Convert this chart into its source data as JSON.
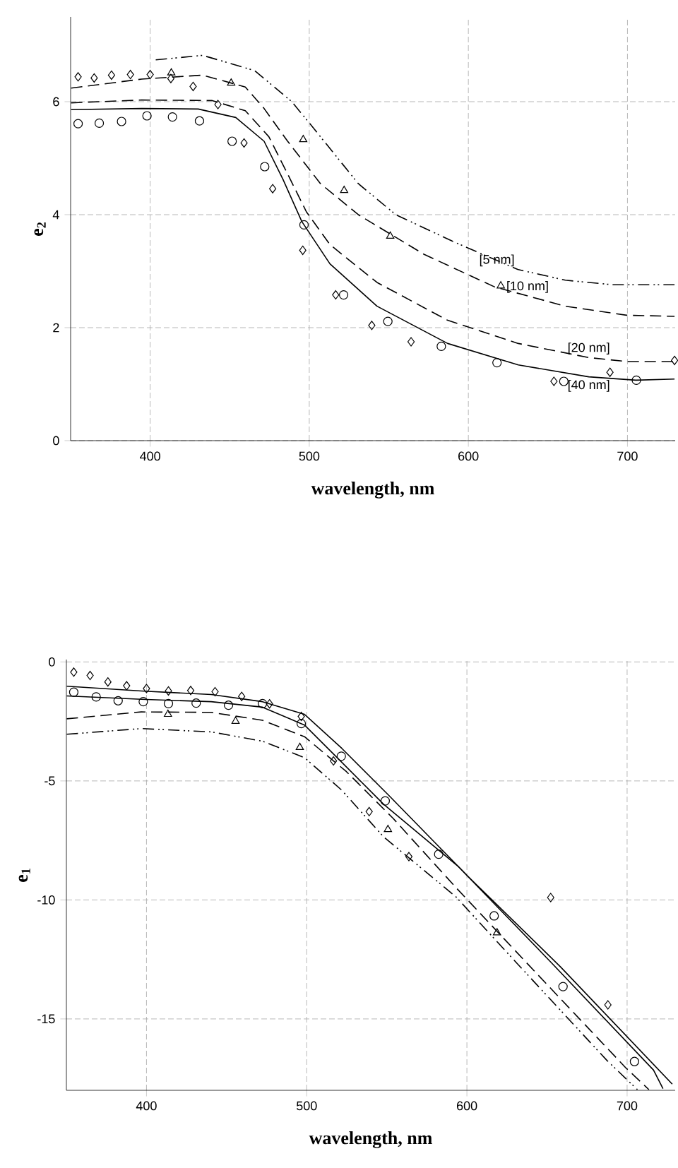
{
  "chart_data": [
    {
      "type": "line",
      "xlabel": "wavelength, nm",
      "ylabel": "e$_{2}$",
      "xlim": [
        350,
        730
      ],
      "ylim": [
        0,
        7.5
      ],
      "xticks": [
        400,
        500,
        600,
        700
      ],
      "yticks": [
        0,
        2,
        4,
        6
      ],
      "grid": true,
      "series": [
        {
          "name": "[5 nm]",
          "line_style": "dashdotdot",
          "color": "#000000",
          "x": [
            403.5,
            433,
            465.7,
            489,
            501,
            530.8,
            554.4,
            590,
            631,
            661,
            690.5,
            729.6
          ],
          "values": [
            6.74,
            6.82,
            6.55,
            6.0,
            5.59,
            4.55,
            4.0,
            3.53,
            3.03,
            2.84,
            2.76,
            2.76
          ]
        },
        {
          "name": "[10 nm]",
          "line_style": "dashed",
          "color": "#000000",
          "x": [
            350.3,
            394.7,
            433,
            459.8,
            471.6,
            486.4,
            507,
            530.8,
            572,
            616.6,
            661,
            699.4,
            729.6
          ],
          "values": [
            6.24,
            6.4,
            6.47,
            6.26,
            5.88,
            5.3,
            4.55,
            4.0,
            3.3,
            2.72,
            2.38,
            2.22,
            2.2
          ]
        },
        {
          "name": "[20 nm]",
          "line_style": "dashed",
          "color": "#000000",
          "x": [
            350.3,
            394.7,
            439,
            459.8,
            474.6,
            486.4,
            498.2,
            513,
            542.6,
            587,
            631.4,
            675.7,
            699.4,
            729.6
          ],
          "values": [
            5.98,
            6.03,
            6.02,
            5.84,
            5.38,
            4.72,
            4.05,
            3.47,
            2.8,
            2.13,
            1.72,
            1.47,
            1.4,
            1.4
          ]
        },
        {
          "name": "[40 nm]",
          "line_style": "solid",
          "color": "#000000",
          "x": [
            350.3,
            394.7,
            430.2,
            453.8,
            471.6,
            483.4,
            495.3,
            513,
            542.6,
            587,
            631.4,
            675.7,
            705.3,
            729.6
          ],
          "values": [
            5.86,
            5.88,
            5.87,
            5.72,
            5.3,
            4.63,
            3.88,
            3.13,
            2.38,
            1.72,
            1.34,
            1.13,
            1.07,
            1.09
          ]
        },
        {
          "type": "scatter",
          "marker": "circle",
          "color": "#000000",
          "x": [
            354.7,
            368,
            382,
            398,
            414,
            431,
            451.5,
            472,
            496.7,
            521.6,
            549.4,
            583,
            618,
            660,
            705.6
          ],
          "values": [
            5.61,
            5.62,
            5.65,
            5.75,
            5.73,
            5.66,
            5.3,
            4.85,
            3.82,
            2.58,
            2.11,
            1.67,
            1.38,
            1.05,
            1.07
          ]
        },
        {
          "type": "scatter",
          "marker": "diamond",
          "color": "#000000",
          "x": [
            354.7,
            364.8,
            375.7,
            387.6,
            400,
            413,
            427,
            442.6,
            459,
            477,
            495.9,
            516.6,
            539.3,
            564,
            653.8,
            689,
            729.6
          ],
          "values": [
            6.44,
            6.42,
            6.47,
            6.48,
            6.48,
            6.41,
            6.27,
            5.95,
            5.27,
            4.46,
            3.37,
            2.58,
            2.04,
            1.75,
            1.05,
            1.21,
            1.42
          ]
        },
        {
          "type": "scatter",
          "marker": "triangle",
          "color": "#000000",
          "x": [
            413.3,
            450.9,
            496.2,
            521.9,
            550.9,
            620.4
          ],
          "values": [
            6.51,
            6.33,
            5.33,
            4.43,
            3.62,
            2.74
          ]
        }
      ]
    },
    {
      "type": "line",
      "xlabel": "wavelength, nm",
      "ylabel": "e$_{1}$",
      "xlim": [
        350,
        730
      ],
      "ylim": [
        -18,
        0.1
      ],
      "xticks": [
        400,
        500,
        600,
        700
      ],
      "yticks": [
        -15,
        -10,
        -5,
        0
      ],
      "grid": true,
      "series": [
        {
          "line_style": "dashdotdot",
          "color": "#000000",
          "x": [
            350.2,
            396.8,
            440.4,
            472.4,
            498.6,
            521.9,
            548,
            593,
            629.3,
            687.5,
            706.4
          ],
          "values": [
            -3.04,
            -2.8,
            -2.94,
            -3.33,
            -4.02,
            -5.39,
            -7.35,
            -9.86,
            -12.52,
            -16.75,
            -17.97
          ]
        },
        {
          "line_style": "dashed",
          "color": "#000000",
          "x": [
            350.2,
            396.8,
            440.4,
            472.4,
            498.6,
            524.8,
            553.9,
            594.4,
            643.8,
            699.1,
            713.6
          ],
          "values": [
            -2.39,
            -2.1,
            -2.12,
            -2.45,
            -3.14,
            -4.61,
            -6.57,
            -9.57,
            -13.11,
            -17.05,
            -17.97
          ]
        },
        {
          "line_style": "solid",
          "color": "#000000",
          "x": [
            350.2,
            396.8,
            440.4,
            472.4,
            498.6,
            519,
            548,
            594.4,
            652.5,
            716.5,
            722.4
          ],
          "values": [
            -1.43,
            -1.57,
            -1.67,
            -1.9,
            -2.65,
            -4.02,
            -5.98,
            -8.58,
            -12.62,
            -17.15,
            -17.93
          ]
        },
        {
          "line_style": "solid",
          "color": "#000000",
          "x": [
            350.2,
            396.8,
            440.4,
            472.4,
            498.6,
            521.9,
            551,
            600.2,
            658.4,
            728.2
          ],
          "values": [
            -1.02,
            -1.22,
            -1.37,
            -1.67,
            -2.2,
            -3.63,
            -5.59,
            -8.98,
            -12.81,
            -17.74
          ]
        },
        {
          "type": "scatter",
          "marker": "circle",
          "color": "#000000",
          "x": [
            354.6,
            368.6,
            382.3,
            398,
            413.7,
            431,
            451.2,
            472.4,
            496.6,
            521.6,
            549,
            582.4,
            617,
            660,
            704.6
          ],
          "values": [
            -1.27,
            -1.47,
            -1.63,
            -1.67,
            -1.75,
            -1.73,
            -1.82,
            -1.75,
            -2.59,
            -3.96,
            -5.84,
            -8.08,
            -10.67,
            -13.64,
            -16.79
          ]
        },
        {
          "type": "scatter",
          "marker": "diamond",
          "color": "#000000",
          "x": [
            354.6,
            364.8,
            375.9,
            387.6,
            400,
            413.7,
            427.6,
            442.8,
            459.4,
            476.8,
            496.6,
            516.7,
            539,
            563.8,
            652.3,
            688
          ],
          "values": [
            -0.43,
            -0.57,
            -0.84,
            -1.0,
            -1.12,
            -1.22,
            -1.2,
            -1.25,
            -1.45,
            -1.76,
            -2.29,
            -4.16,
            -6.29,
            -8.18,
            -9.9,
            -14.41
          ]
        },
        {
          "type": "scatter",
          "marker": "triangle",
          "color": "#000000",
          "x": [
            413.4,
            455.6,
            495.7,
            550.7,
            618.8
          ],
          "values": [
            -2.2,
            -2.49,
            -3.59,
            -7.04,
            -11.38
          ]
        }
      ]
    }
  ]
}
